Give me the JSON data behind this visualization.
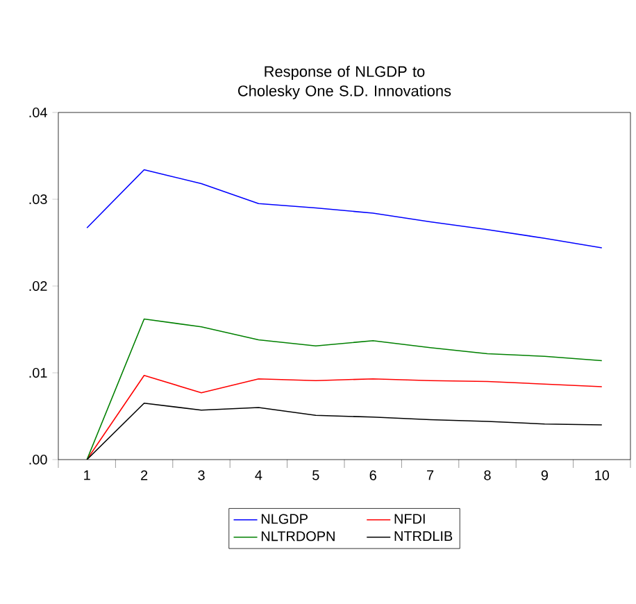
{
  "chart_data": {
    "type": "line",
    "title": "Response of NLGDP to Cholesky One S.D. Innovations",
    "categories": [
      "1",
      "2",
      "3",
      "4",
      "5",
      "6",
      "7",
      "8",
      "9",
      "10"
    ],
    "series": [
      {
        "name": "NLGDP",
        "color": "#0000ff",
        "values": [
          0.0267,
          0.0334,
          0.0318,
          0.0295,
          0.029,
          0.0284,
          0.0274,
          0.0265,
          0.0255,
          0.0244
        ]
      },
      {
        "name": "NFDI",
        "color": "#ff0000",
        "values": [
          0,
          0.0097,
          0.0077,
          0.0093,
          0.0091,
          0.0093,
          0.0091,
          0.009,
          0.0087,
          0.0084
        ]
      },
      {
        "name": "NLTRDOPN",
        "color": "#008000",
        "values": [
          0,
          0.0162,
          0.0153,
          0.0138,
          0.0131,
          0.0137,
          0.0129,
          0.0122,
          0.0119,
          0.0114
        ]
      },
      {
        "name": "NTRDLIB",
        "color": "#000000",
        "values": [
          0,
          0.0065,
          0.0057,
          0.006,
          0.0051,
          0.0049,
          0.0046,
          0.0044,
          0.0041,
          0.004
        ]
      }
    ],
    "ylim": [
      0,
      0.04
    ],
    "yticks": [
      {
        "value": 0,
        "label": ".00"
      },
      {
        "value": 0.01,
        "label": ".01"
      },
      {
        "value": 0.02,
        "label": ".02"
      },
      {
        "value": 0.03,
        "label": ".03"
      },
      {
        "value": 0.04,
        "label": ".04"
      }
    ],
    "legend": "bottom",
    "grid": false,
    "marker": "none",
    "line_style": "solid"
  }
}
